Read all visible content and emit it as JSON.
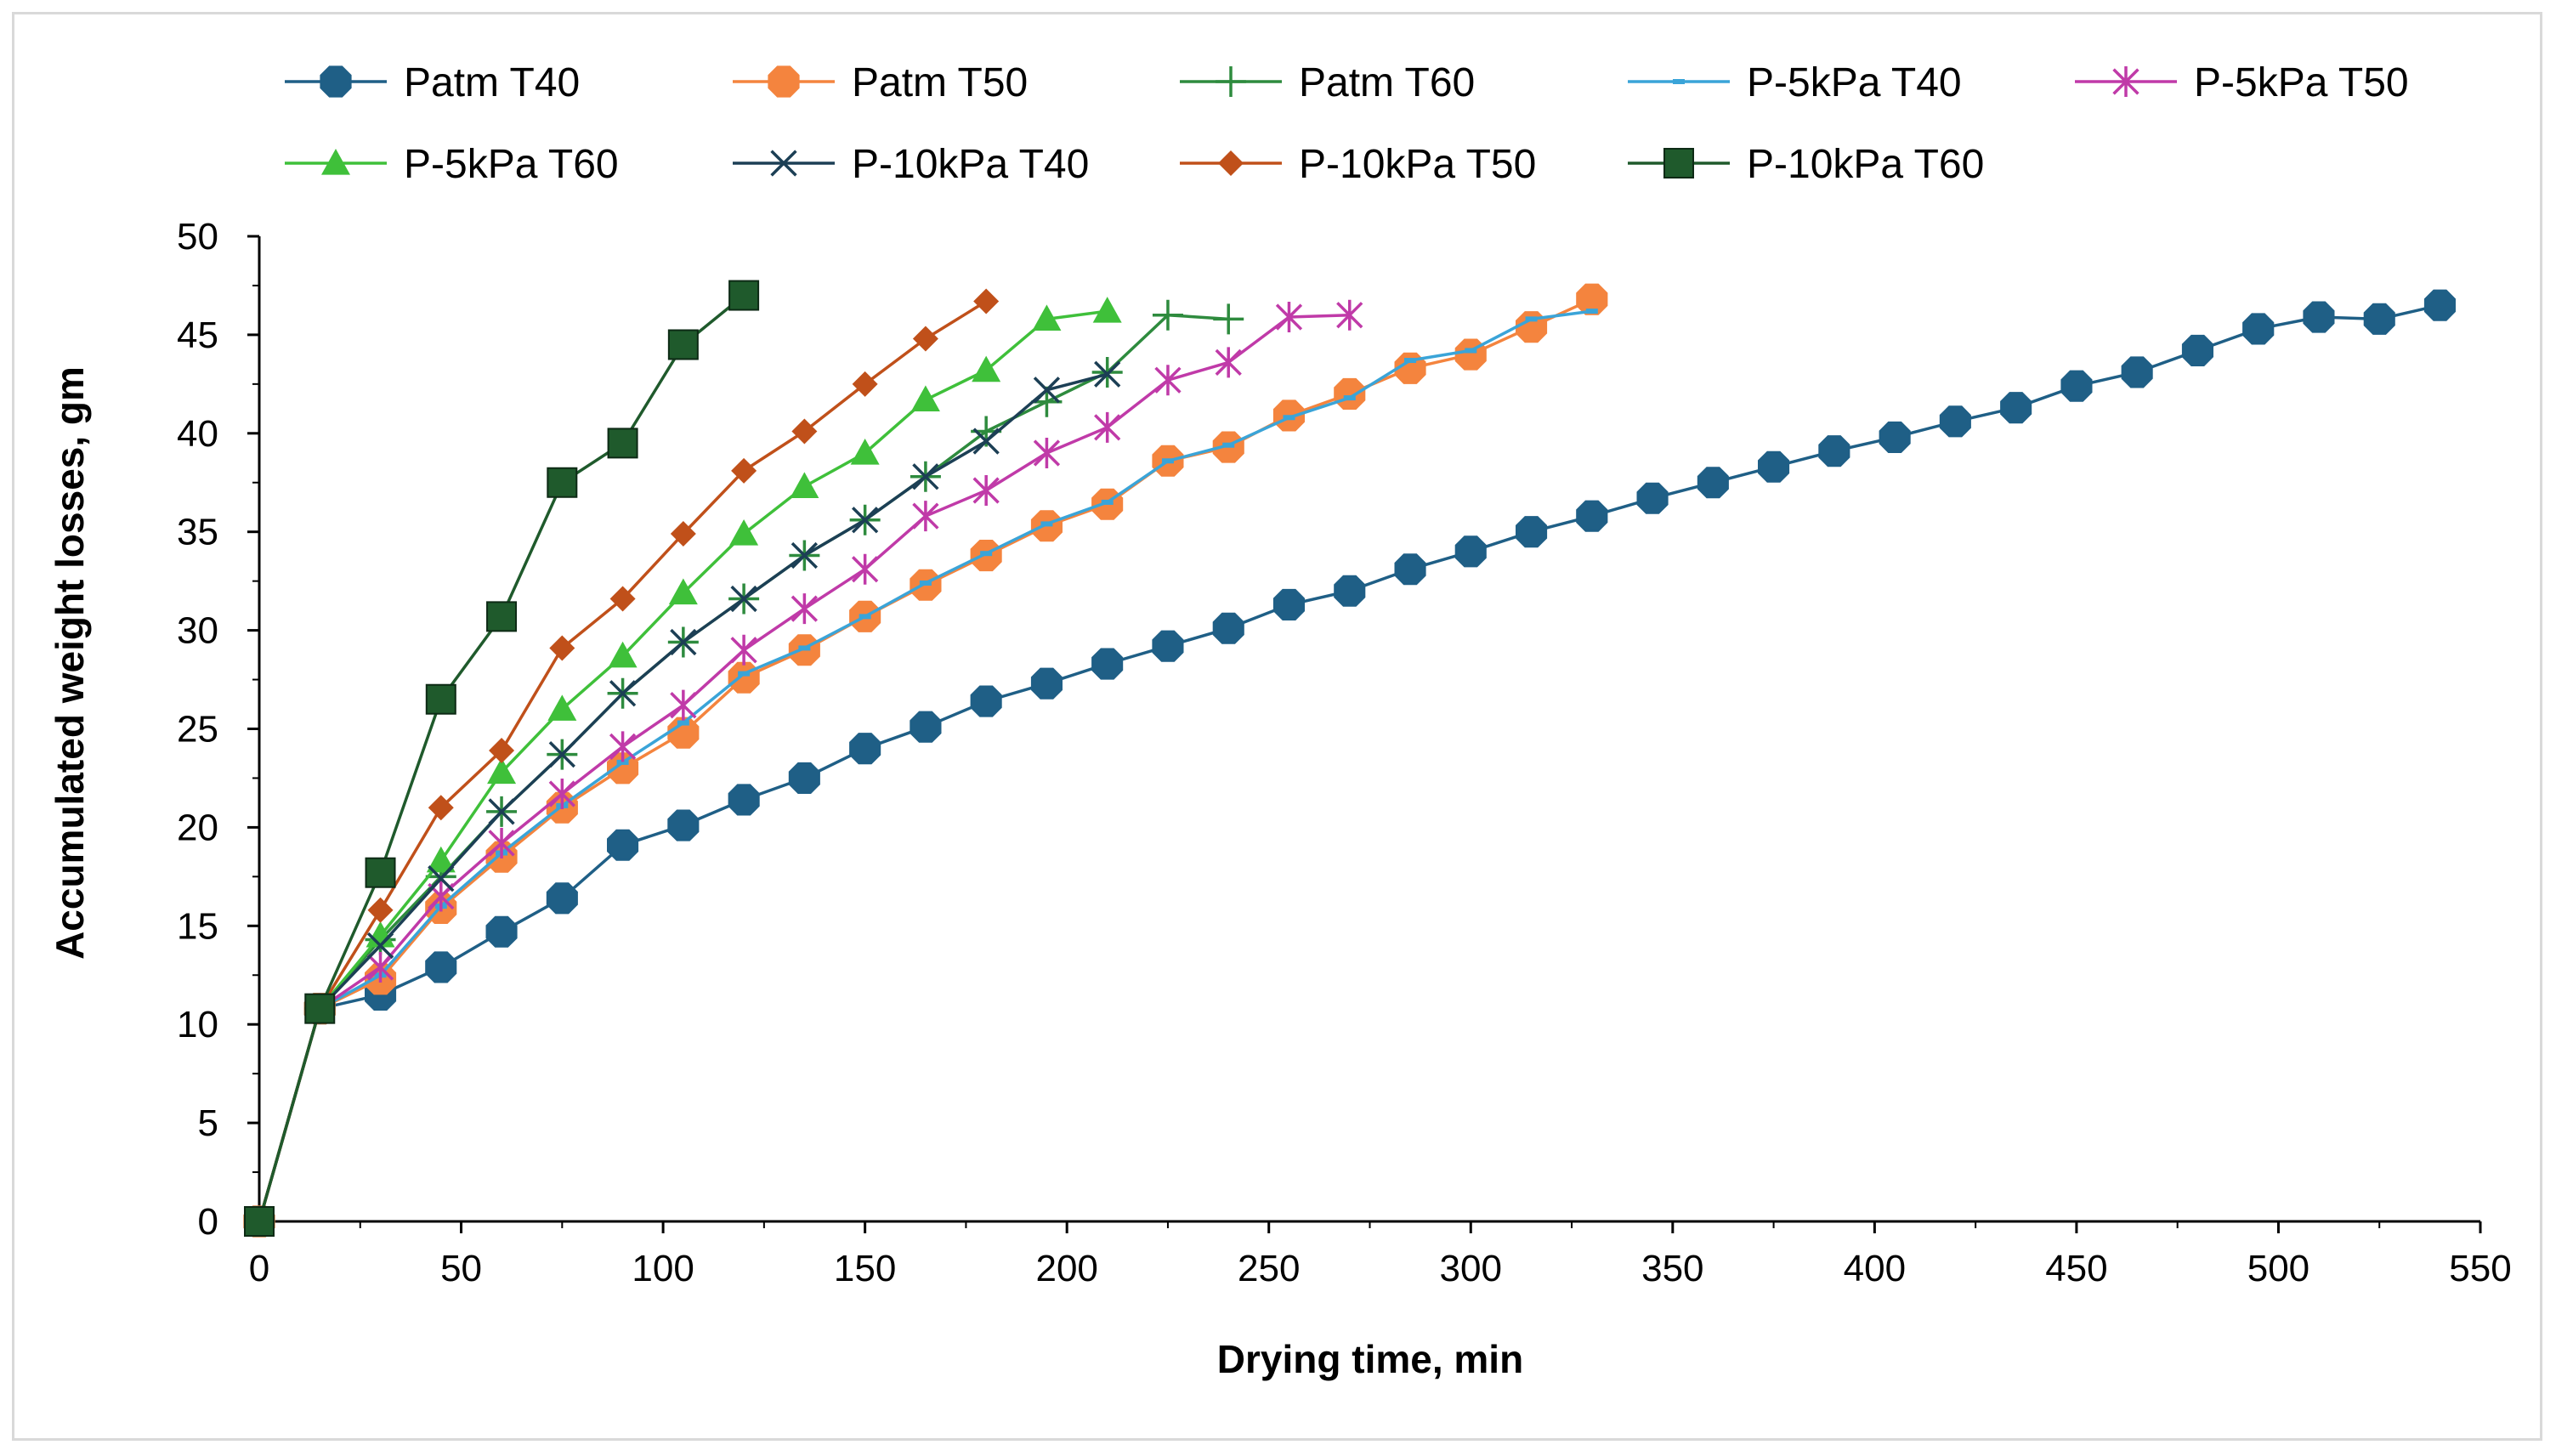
{
  "chart_data": {
    "type": "line",
    "title": "",
    "xlabel": "Drying time, min",
    "ylabel": "Accumulated weight losses, gm",
    "xlim": [
      0,
      550
    ],
    "ylim": [
      0,
      50
    ],
    "xticks": [
      "0",
      "50",
      "100",
      "150",
      "200",
      "250",
      "300",
      "350",
      "400",
      "450",
      "500",
      "550"
    ],
    "yticks": [
      "0",
      "5",
      "10",
      "15",
      "20",
      "25",
      "30",
      "35",
      "40",
      "45",
      "50"
    ],
    "legend_position": "top",
    "grid": false,
    "series": [
      {
        "name": "Patm T40",
        "color": "#1f5f86",
        "marker": "octagon",
        "x": [
          0,
          15,
          30,
          45,
          60,
          75,
          90,
          105,
          120,
          135,
          150,
          165,
          180,
          195,
          210,
          225,
          240,
          255,
          270,
          285,
          300,
          315,
          330,
          345,
          360,
          375,
          390,
          405,
          420,
          435,
          450,
          465,
          480,
          495,
          510,
          525,
          540
        ],
        "y": [
          0,
          10.8,
          11.5,
          12.9,
          14.7,
          16.4,
          19.1,
          20.1,
          21.4,
          22.5,
          24.0,
          25.1,
          26.4,
          27.3,
          28.3,
          29.2,
          30.1,
          31.3,
          32.0,
          33.1,
          34.0,
          35.0,
          35.8,
          36.7,
          37.5,
          38.3,
          39.1,
          39.8,
          40.6,
          41.3,
          42.4,
          43.1,
          44.2,
          45.3,
          45.9,
          45.8,
          46.5
        ]
      },
      {
        "name": "Patm T50",
        "color": "#f4843e",
        "marker": "octagon",
        "x": [
          0,
          15,
          30,
          45,
          60,
          75,
          90,
          105,
          120,
          135,
          150,
          165,
          180,
          195,
          210,
          225,
          240,
          255,
          270,
          285,
          300,
          315,
          330
        ],
        "y": [
          0,
          10.8,
          12.3,
          15.9,
          18.5,
          21.0,
          23.0,
          24.8,
          27.6,
          29.0,
          30.7,
          32.3,
          33.8,
          35.3,
          36.4,
          38.6,
          39.3,
          40.9,
          42.0,
          43.3,
          44.0,
          45.4,
          46.8
        ]
      },
      {
        "name": "Patm T60",
        "color": "#2e8b3e",
        "marker": "plus",
        "x": [
          0,
          15,
          30,
          45,
          60,
          75,
          90,
          105,
          120,
          135,
          150,
          165,
          180,
          195,
          210,
          225,
          240
        ],
        "y": [
          0,
          10.8,
          14.3,
          17.5,
          20.8,
          23.7,
          26.8,
          29.4,
          31.6,
          33.8,
          35.6,
          37.8,
          40.1,
          41.6,
          43.1,
          46.0,
          45.8
        ]
      },
      {
        "name": "P-5kPa T40",
        "color": "#3aa4d8",
        "marker": "dash",
        "x": [
          0,
          15,
          30,
          45,
          60,
          75,
          90,
          105,
          120,
          135,
          150,
          165,
          180,
          195,
          210,
          225,
          240,
          255,
          270,
          285,
          300,
          315,
          330
        ],
        "y": [
          0,
          10.8,
          12.5,
          16.0,
          18.7,
          21.1,
          23.3,
          25.3,
          27.8,
          29.1,
          30.7,
          32.4,
          33.9,
          35.4,
          36.5,
          38.6,
          39.4,
          40.8,
          41.8,
          43.7,
          44.2,
          45.8,
          46.2
        ]
      },
      {
        "name": "P-5kPa T50",
        "color": "#c03aa8",
        "marker": "asterisk",
        "x": [
          0,
          15,
          30,
          45,
          60,
          75,
          90,
          105,
          120,
          135,
          150,
          165,
          180,
          195,
          210,
          225,
          240,
          255,
          270
        ],
        "y": [
          0,
          10.8,
          12.9,
          16.5,
          19.2,
          21.7,
          24.1,
          26.2,
          29.0,
          31.1,
          33.1,
          35.8,
          37.1,
          39.0,
          40.3,
          42.7,
          43.6,
          45.9,
          46.0
        ]
      },
      {
        "name": "P-5kPa T60",
        "color": "#3fc03a",
        "marker": "triangle",
        "x": [
          0,
          15,
          30,
          45,
          60,
          75,
          90,
          105,
          120,
          135,
          150,
          165,
          180,
          195,
          210
        ],
        "y": [
          0,
          10.8,
          14.5,
          18.3,
          22.8,
          26.0,
          28.7,
          31.9,
          34.9,
          37.3,
          39.0,
          41.7,
          43.2,
          45.8,
          46.2
        ]
      },
      {
        "name": "P-10kPa T40",
        "color": "#1c3f55",
        "marker": "x",
        "x": [
          0,
          15,
          30,
          45,
          60,
          75,
          90,
          105,
          120,
          135,
          150,
          165,
          180,
          195,
          210
        ],
        "y": [
          0,
          10.8,
          14.0,
          17.4,
          20.8,
          23.7,
          26.8,
          29.4,
          31.6,
          33.8,
          35.6,
          37.8,
          39.6,
          42.2,
          43.0
        ]
      },
      {
        "name": "P-10kPa T50",
        "color": "#c0501a",
        "marker": "diamond",
        "x": [
          0,
          15,
          30,
          45,
          60,
          75,
          90,
          105,
          120,
          135,
          150,
          165,
          180
        ],
        "y": [
          0,
          10.8,
          15.8,
          21.0,
          23.9,
          29.1,
          31.6,
          34.9,
          38.1,
          40.1,
          42.5,
          44.8,
          46.7
        ]
      },
      {
        "name": "P-10kPa T60",
        "color": "#1f5a2c",
        "marker": "square",
        "x": [
          0,
          15,
          30,
          45,
          60,
          75,
          90,
          105,
          120
        ],
        "y": [
          0,
          10.8,
          17.7,
          26.5,
          30.7,
          37.5,
          39.5,
          44.5,
          47.0
        ]
      }
    ]
  }
}
